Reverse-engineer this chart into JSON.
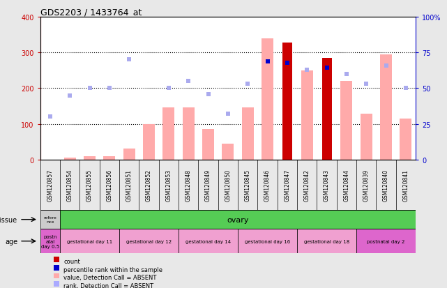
{
  "title": "GDS2203 / 1433764_at",
  "samples": [
    "GSM120857",
    "GSM120854",
    "GSM120855",
    "GSM120856",
    "GSM120851",
    "GSM120852",
    "GSM120853",
    "GSM120848",
    "GSM120849",
    "GSM120850",
    "GSM120845",
    "GSM120846",
    "GSM120847",
    "GSM120842",
    "GSM120843",
    "GSM120844",
    "GSM120839",
    "GSM120840",
    "GSM120841"
  ],
  "count_values": [
    0,
    0,
    0,
    0,
    0,
    0,
    0,
    0,
    0,
    0,
    0,
    0,
    328,
    0,
    285,
    0,
    0,
    0,
    0
  ],
  "percentile_values": [
    0,
    0,
    0,
    0,
    0,
    0,
    0,
    0,
    0,
    0,
    0,
    275,
    270,
    0,
    258,
    0,
    0,
    0,
    0
  ],
  "absent_value_bars": [
    0,
    5,
    10,
    10,
    30,
    100,
    145,
    145,
    85,
    45,
    145,
    340,
    0,
    250,
    0,
    220,
    128,
    295,
    115
  ],
  "absent_rank_vals": [
    30,
    45,
    50,
    50,
    70,
    0,
    50,
    55,
    46,
    32,
    53,
    0,
    0,
    63,
    0,
    60,
    53,
    66,
    50
  ],
  "ylim_left": [
    0,
    400
  ],
  "ylim_right": [
    0,
    100
  ],
  "yticks_left": [
    0,
    100,
    200,
    300,
    400
  ],
  "yticks_right": [
    0,
    25,
    50,
    75,
    100
  ],
  "ylabel_left_color": "#cc0000",
  "ylabel_right_color": "#0000cc",
  "tissue_ref_text": "refere\nnce",
  "tissue_ovary_text": "ovary",
  "tissue_ref_color": "#cccccc",
  "tissue_ovary_color": "#55cc55",
  "age_groups": [
    {
      "label": "postn\natal\nday 0.5",
      "color": "#dd66cc",
      "start": 0,
      "end": 1
    },
    {
      "label": "gestational day 11",
      "color": "#f0a0d0",
      "start": 1,
      "end": 4
    },
    {
      "label": "gestational day 12",
      "color": "#f0a0d0",
      "start": 4,
      "end": 7
    },
    {
      "label": "gestational day 14",
      "color": "#f0a0d0",
      "start": 7,
      "end": 10
    },
    {
      "label": "gestational day 16",
      "color": "#f0a0d0",
      "start": 10,
      "end": 13
    },
    {
      "label": "gestational day 18",
      "color": "#f0a0d0",
      "start": 13,
      "end": 16
    },
    {
      "label": "postnatal day 2",
      "color": "#dd66cc",
      "start": 16,
      "end": 19
    }
  ],
  "legend_items": [
    {
      "color": "#cc0000",
      "label": "count"
    },
    {
      "color": "#0000cc",
      "label": "percentile rank within the sample"
    },
    {
      "color": "#ffaaaa",
      "label": "value, Detection Call = ABSENT"
    },
    {
      "color": "#aaaaff",
      "label": "rank, Detection Call = ABSENT"
    }
  ],
  "absent_value_color": "#ffaaaa",
  "absent_rank_color": "#aaaaee",
  "count_color": "#cc0000",
  "percentile_color": "#0000cc",
  "bg_color": "#e8e8e8",
  "plot_bg": "#ffffff",
  "sample_box_color": "#cccccc"
}
